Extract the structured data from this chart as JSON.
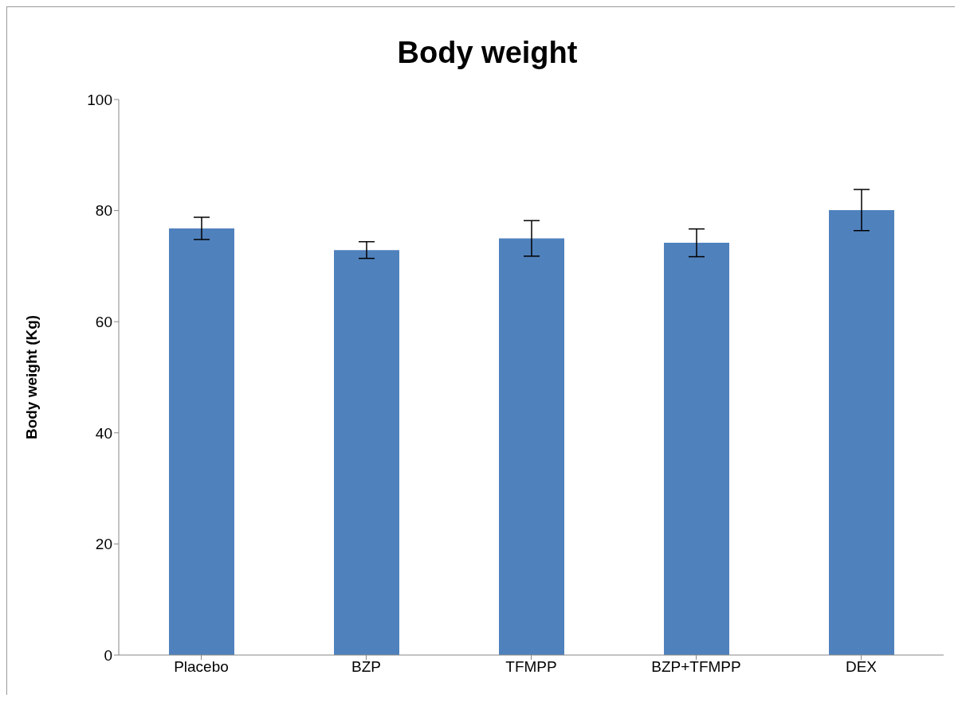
{
  "chart_data": {
    "type": "bar",
    "title": "Body weight",
    "ylabel": "Body weight (Kg)",
    "categories": [
      "Placebo",
      "BZP",
      "TFMPP",
      "BZP+TFMPP",
      "DEX"
    ],
    "values": [
      76.8,
      72.9,
      75.0,
      74.2,
      80.1
    ],
    "errors": [
      2.0,
      1.5,
      3.2,
      2.5,
      3.7
    ],
    "color": "#4f81bd",
    "ylim": [
      0,
      100
    ],
    "yticks": [
      0,
      20,
      40,
      60,
      80,
      100
    ],
    "grid": false,
    "legend": false
  }
}
